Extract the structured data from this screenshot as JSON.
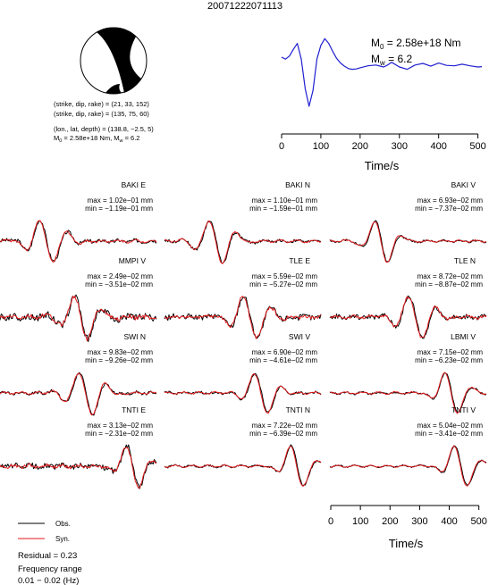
{
  "title": "20071222071113",
  "source_params": {
    "line1": "(strike, dip, rake) = (21, 33, 152)",
    "line2": "(strike, dip, rake) = (135, 75, 60)",
    "line3": "(lon., lat, depth) = (138.8, −2.5, 5)",
    "line4_m0": "M",
    "line4_m0_sub": "0",
    "line4_m0_val": " = 2.58e+18 Nm, M",
    "line4_mw_sub": "w",
    "line4_mw_val": " = 6.2"
  },
  "stf_labels": {
    "m0": "M",
    "m0_sub": "0",
    "m0_val": " = 2.58e+18 Nm",
    "mw": "M",
    "mw_sub": "w",
    "mw_val": " = 6.2"
  },
  "legend": {
    "obs": "Obs.",
    "syn": "Syn.",
    "residual": "Residual = 0.23",
    "freq1": "Frequency range",
    "freq2": "0.01 − 0.02 (Hz)"
  },
  "colors": {
    "obs": "#000000",
    "syn": "#e41a1c",
    "stf": "#1f1fd0"
  },
  "chart_data": [
    {
      "type": "line",
      "name": "source-time-function",
      "xlabel": "Time/s",
      "xlim": [
        0,
        510
      ],
      "xticks": [
        0,
        100,
        200,
        300,
        400,
        500
      ],
      "x": [
        0,
        10,
        20,
        30,
        40,
        50,
        60,
        70,
        80,
        90,
        100,
        110,
        120,
        130,
        140,
        150,
        160,
        170,
        180,
        190,
        200,
        220,
        240,
        260,
        270,
        280,
        300,
        320,
        340,
        360,
        380,
        400,
        420,
        440,
        460,
        480,
        500,
        510
      ],
      "y": [
        0.25,
        0.2,
        0.28,
        0.45,
        0.6,
        0.2,
        -0.55,
        -1.0,
        -0.6,
        0.2,
        0.55,
        0.72,
        0.6,
        0.4,
        0.22,
        0.1,
        0.02,
        -0.04,
        -0.06,
        -0.05,
        -0.02,
        0.03,
        0.05,
        0.0,
        0.05,
        0.12,
        0.0,
        -0.06,
        0.05,
        0.09,
        0.02,
        0.1,
        0.04,
        0.03,
        0.07,
        0.03,
        0.0,
        0.01
      ]
    },
    {
      "type": "line",
      "name": "waveform-fits",
      "xlabel": "Time/s",
      "xlim": [
        0,
        510
      ],
      "xticks": [
        0,
        100,
        200,
        300,
        400,
        500
      ],
      "series": [
        {
          "name": "Obs."
        },
        {
          "name": "Syn."
        }
      ],
      "stations": [
        {
          "label": "BAKI E",
          "max": "max = 1.02e−01 mm",
          "min": "min = −1.19e−01 mm",
          "center": 0.3,
          "osc": 3,
          "noise": 0.08
        },
        {
          "label": "BAKI N",
          "max": "max = 1.10e−01 mm",
          "min": "min = −1.59e−01 mm",
          "center": 0.33,
          "osc": 3,
          "noise": 0.06
        },
        {
          "label": "BAKI V",
          "max": "max = 6.93e−02 mm",
          "min": "min = −7.37e−02 mm",
          "center": 0.33,
          "osc": 2,
          "noise": 0.04
        },
        {
          "label": "MMPI V",
          "max": "max = 2.49e−02 mm",
          "min": "min = −3.51e−02 mm",
          "center": 0.52,
          "osc": 3,
          "noise": 0.15
        },
        {
          "label": "TLE E",
          "max": "max = 5.59e−02 mm",
          "min": "min = −5.27e−02 mm",
          "center": 0.55,
          "osc": 3,
          "noise": 0.12
        },
        {
          "label": "TLE N",
          "max": "max = 8.72e−02 mm",
          "min": "min = −8.87e−02 mm",
          "center": 0.55,
          "osc": 3,
          "noise": 0.1
        },
        {
          "label": "SWI N",
          "max": "max = 9.83e−02 mm",
          "min": "min = −9.26e−02 mm",
          "center": 0.55,
          "osc": 3,
          "noise": 0.06
        },
        {
          "label": "SWI V",
          "max": "max = 6.90e−02 mm",
          "min": "min = −4.61e−02 mm",
          "center": 0.62,
          "osc": 2,
          "noise": 0.05
        },
        {
          "label": "LBMI V",
          "max": "max = 7.15e−02 mm",
          "min": "min = −6.23e−02 mm",
          "center": 0.78,
          "osc": 2,
          "noise": 0.04
        },
        {
          "label": "TNTI E",
          "max": "max = 3.13e−02 mm",
          "min": "min = −2.31e−02 mm",
          "center": 0.85,
          "osc": 2,
          "noise": 0.12
        },
        {
          "label": "TNTI N",
          "max": "max = 7.22e−02 mm",
          "min": "min = −6.39e−02 mm",
          "center": 0.85,
          "osc": 2,
          "noise": 0.04
        },
        {
          "label": "TNTI V",
          "max": "max = 5.04e−02 mm",
          "min": "min = −3.41e−02 mm",
          "center": 0.84,
          "osc": 2,
          "noise": 0.03
        }
      ]
    }
  ]
}
